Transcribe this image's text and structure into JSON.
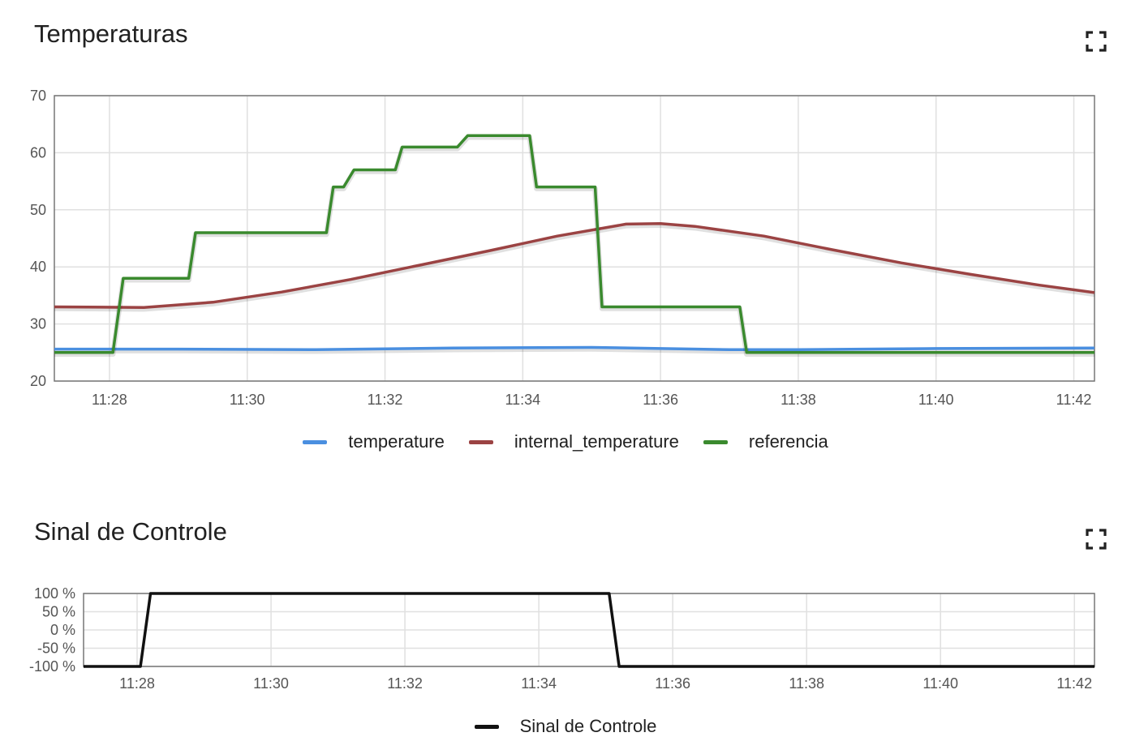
{
  "charts": [
    {
      "title": "Temperaturas",
      "fullscreen_icon": "fullscreen-icon",
      "chart_data": {
        "type": "line",
        "title": "Temperaturas",
        "xlabel": "",
        "ylabel": "",
        "x_ticks": [
          "11:28",
          "11:30",
          "11:32",
          "11:34",
          "11:36",
          "11:38",
          "11:40",
          "11:42"
        ],
        "y_ticks": [
          "20",
          "30",
          "40",
          "50",
          "60",
          "70"
        ],
        "xlim_minutes": [
          "11:27.2",
          "11:42.3"
        ],
        "ylim": [
          20,
          70
        ],
        "grid": true,
        "legend_position": "bottom",
        "series": [
          {
            "name": "temperature",
            "color": "#4a8fe0",
            "x": [
              "11:27.2",
              "11:29",
              "11:31",
              "11:33",
              "11:35",
              "11:37",
              "11:38",
              "11:40",
              "11:42.3"
            ],
            "y": [
              25.6,
              25.6,
              25.5,
              25.8,
              25.9,
              25.5,
              25.5,
              25.7,
              25.8
            ]
          },
          {
            "name": "internal_temperature",
            "color": "#9b4343",
            "x": [
              "11:27.2",
              "11:28.5",
              "11:29.5",
              "11:30.5",
              "11:31.5",
              "11:32.5",
              "11:33.5",
              "11:34.5",
              "11:35.5",
              "11:36",
              "11:36.5",
              "11:37.5",
              "11:38.5",
              "11:39.5",
              "11:40.5",
              "11:41.5",
              "11:42.3"
            ],
            "y": [
              33.0,
              32.9,
              33.8,
              35.6,
              37.8,
              40.3,
              42.8,
              45.4,
              47.5,
              47.6,
              47.1,
              45.4,
              43.0,
              40.7,
              38.7,
              36.8,
              35.5
            ]
          },
          {
            "name": "referencia",
            "color": "#3a8a2e",
            "x": [
              "11:27.2",
              "11:28.05",
              "11:28.2",
              "11:29.15",
              "11:29.25",
              "11:31.15",
              "11:31.25",
              "11:31.4",
              "11:31.55",
              "11:32.15",
              "11:32.25",
              "11:33.05",
              "11:33.2",
              "11:34.1",
              "11:34.2",
              "11:35.05",
              "11:35.15",
              "11:37.15",
              "11:37.25",
              "11:42.3"
            ],
            "y": [
              25,
              25,
              38,
              38,
              46,
              46,
              54,
              54,
              57,
              57,
              61,
              61,
              63,
              63,
              54,
              54,
              33,
              33,
              25,
              25
            ]
          }
        ]
      }
    },
    {
      "title": "Sinal de Controle",
      "fullscreen_icon": "fullscreen-icon",
      "chart_data": {
        "type": "line",
        "title": "Sinal de Controle",
        "xlabel": "",
        "ylabel": "",
        "x_ticks": [
          "11:28",
          "11:30",
          "11:32",
          "11:34",
          "11:36",
          "11:38",
          "11:40",
          "11:42"
        ],
        "y_ticks": [
          "100 %",
          "50 %",
          "0 %",
          "-50 %",
          "-100 %"
        ],
        "xlim_minutes": [
          "11:27.2",
          "11:42.3"
        ],
        "ylim": [
          -100,
          100
        ],
        "grid": true,
        "legend_position": "bottom",
        "series": [
          {
            "name": "Sinal de Controle",
            "color": "#111111",
            "x": [
              "11:27.2",
              "11:28.05",
              "11:28.2",
              "11:35.05",
              "11:35.2",
              "11:42.3"
            ],
            "y": [
              -100,
              -100,
              100,
              100,
              -100,
              -100
            ]
          }
        ]
      }
    }
  ]
}
